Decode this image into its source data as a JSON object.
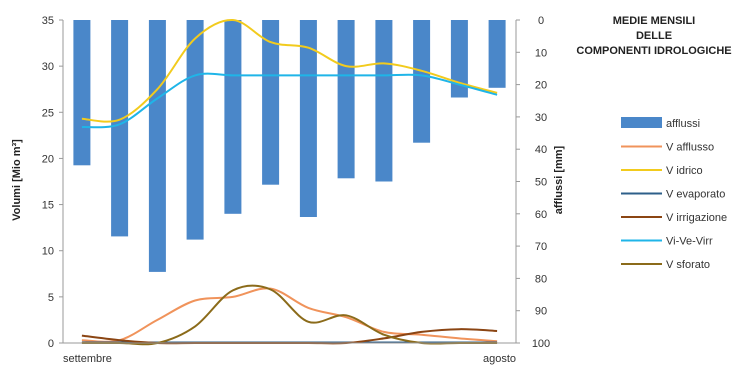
{
  "chart_data": {
    "type": "bar+line",
    "title_lines": [
      "MEDIE MENSILI",
      "DELLE",
      "COMPONENTI IDROLOGICHE"
    ],
    "y_left_label": "Volumi [Mio m³]",
    "y_right_label": "afflussi [mm]",
    "y_left_range": [
      0,
      35
    ],
    "y_left_ticks": [
      "0",
      "5",
      "10",
      "15",
      "20",
      "25",
      "30",
      "35"
    ],
    "y_right_range": [
      0,
      100
    ],
    "y_right_inverted": true,
    "y_right_ticks": [
      "0",
      "10",
      "20",
      "30",
      "40",
      "50",
      "60",
      "70",
      "80",
      "90",
      "100"
    ],
    "x_labels": [
      "settembre",
      "agosto"
    ],
    "grid": false,
    "legend_position": "right",
    "bars": {
      "name": "afflussi",
      "axis": "right",
      "color": "#4a87c9",
      "values": [
        45,
        67,
        78,
        68,
        60,
        51,
        61,
        49,
        50,
        38,
        24,
        21
      ]
    },
    "series": [
      {
        "name": "V afflusso",
        "color": "#f0935b",
        "values": [
          0.3,
          0.3,
          2.5,
          4.6,
          5.0,
          5.9,
          3.8,
          2.8,
          1.2,
          0.9,
          0.5,
          0.2
        ]
      },
      {
        "name": "V idrico",
        "color": "#f2cb1d",
        "values": [
          24.3,
          24.2,
          27.5,
          33.0,
          35.0,
          32.6,
          32.0,
          30.0,
          30.3,
          29.5,
          28.2,
          27.1
        ]
      },
      {
        "name": "V evaporato",
        "color": "#2e5f8a",
        "values": [
          0.05,
          0.05,
          0.05,
          0.05,
          0.05,
          0.05,
          0.05,
          0.05,
          0.05,
          0.05,
          0.05,
          0.05
        ]
      },
      {
        "name": "V irrigazione",
        "color": "#8b4513",
        "values": [
          0.8,
          0.3,
          0.0,
          0.0,
          0.0,
          0.0,
          0.0,
          0.0,
          0.5,
          1.2,
          1.5,
          1.3
        ]
      },
      {
        "name": "Vi-Ve-Virr",
        "color": "#1fb5e8",
        "values": [
          23.4,
          23.7,
          26.5,
          29.0,
          29.0,
          29.0,
          29.0,
          29.0,
          29.0,
          29.0,
          28.0,
          26.9
        ]
      },
      {
        "name": "V sforato",
        "color": "#8b6b1a",
        "values": [
          0.0,
          0.0,
          0.0,
          1.8,
          5.7,
          5.8,
          2.3,
          3.0,
          0.9,
          0.0,
          0.0,
          0.0
        ]
      }
    ]
  }
}
